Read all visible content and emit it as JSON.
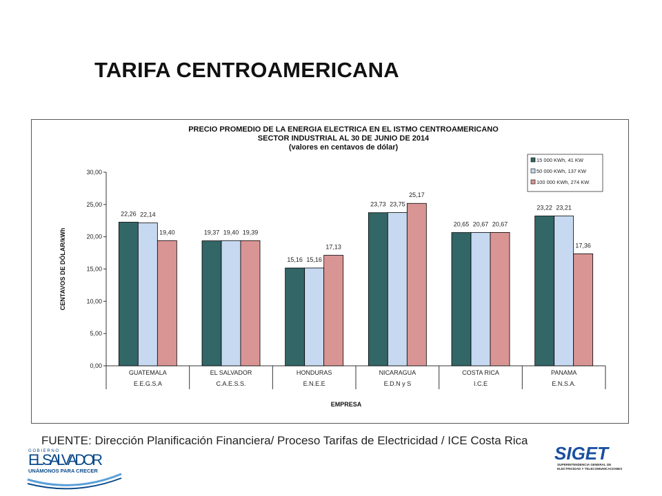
{
  "slide": {
    "title": "TARIFA CENTROAMERICANA",
    "source": "FUENTE: Dirección Planificación Financiera/ Proceso Tarifas de Electricidad / ICE Costa Rica"
  },
  "logos": {
    "left": {
      "small": "G O B I E R N O",
      "name": "EL SALVADOR",
      "motto": "UNÁMONOS PARA CRECER"
    },
    "right": {
      "name": "SIGET",
      "sub1": "SUPERINTENDENCIA GENERAL DE",
      "sub2": "ELECTRICIDAD Y TELECOMUNICACIONES"
    }
  },
  "colors": {
    "series1": "#336666",
    "series2": "#c6d9f1",
    "series3": "#d99594"
  },
  "chart_data": {
    "type": "bar",
    "title_lines": [
      "PRECIO PROMEDIO DE LA ENERGIA ELECTRICA EN EL ISTMO CENTROAMERICANO",
      "SECTOR INDUSTRIAL  AL 30 DE JUNIO DE 2014",
      "(valores  en centavos  de  dólar)"
    ],
    "ylabel": "CENTAVOS DE DÓLAR/kWh",
    "xlabel": "EMPRESA",
    "ylim": [
      0,
      30
    ],
    "yticks": [
      "0,00",
      "5,00",
      "10,00",
      "15,00",
      "20,00",
      "25,00",
      "30,00"
    ],
    "categories": [
      "GUATEMALA",
      "EL SALVADOR",
      "HONDURAS",
      "NICARAGUA",
      "COSTA RICA",
      "PANAMA"
    ],
    "subcategories": [
      "E.E.G.S.A",
      "C.A.E.S.S.",
      "E.N.E.E",
      "E.D.N y S",
      "I.C.E",
      "E.N.S.A."
    ],
    "legend_position": "top-right",
    "series": [
      {
        "name": "15 000 KWh,  41 KW",
        "values": [
          22.26,
          19.37,
          15.16,
          23.73,
          20.65,
          23.22
        ],
        "labels": [
          "22,26",
          "19,37",
          "15,16",
          "23,73",
          "20,65",
          "23,22"
        ]
      },
      {
        "name": "50 000 KWh, 137 KW",
        "values": [
          22.14,
          19.4,
          15.16,
          23.75,
          20.67,
          23.21
        ],
        "labels": [
          "22,14",
          "19,40",
          "15,16",
          "23,75",
          "20,67",
          "23,21"
        ]
      },
      {
        "name": "100 000 KWh, 274 KW",
        "values": [
          19.4,
          19.39,
          17.13,
          25.17,
          20.67,
          17.36
        ],
        "labels": [
          "19,40",
          "19,39",
          "17,13",
          "25,17",
          "20,67",
          "17,36"
        ]
      }
    ]
  }
}
